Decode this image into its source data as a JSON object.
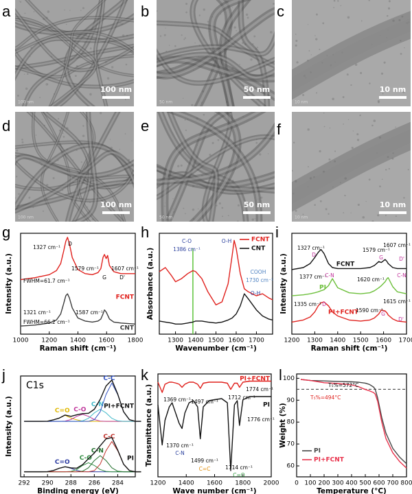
{
  "panels": [
    {
      "label": "a",
      "scale_bar": "100 nm",
      "imprint": "100 nm"
    },
    {
      "label": "b",
      "scale_bar": "50 nm",
      "imprint": "50 nm"
    },
    {
      "label": "c",
      "scale_bar": "10 nm",
      "imprint": "10 nm"
    },
    {
      "label": "d",
      "scale_bar": "100 nm",
      "imprint": "100 nm"
    },
    {
      "label": "e",
      "scale_bar": "50 nm",
      "imprint": "50 nm"
    },
    {
      "label": "f",
      "scale_bar": "10 nm",
      "imprint": "10 nm"
    }
  ],
  "chart_data": [
    {
      "type": "line",
      "letter": "g",
      "xlabel": "Raman shift (cm⁻¹)",
      "ylabel": "Intensity (a.u.)",
      "x": [
        1000,
        1100,
        1200,
        1250,
        1280,
        1300,
        1315,
        1327,
        1340,
        1360,
        1400,
        1450,
        1500,
        1540,
        1560,
        1575,
        1585,
        1597,
        1607,
        1620,
        1650,
        1700,
        1800
      ],
      "xlim": [
        1000,
        1800
      ],
      "xticks": [
        1000,
        1200,
        1400,
        1600,
        1800
      ],
      "ylim": [
        0,
        100
      ],
      "series": [
        {
          "name": "FCNT",
          "color": "#e0201c",
          "values": [
            54,
            56,
            59,
            63,
            70,
            82,
            92,
            96,
            90,
            76,
            64,
            60,
            59,
            61,
            65,
            76,
            79,
            75,
            78,
            68,
            62,
            60,
            60
          ]
        },
        {
          "name": "CNT",
          "color": "#3a3a3a",
          "values": [
            8,
            9,
            11,
            14,
            20,
            30,
            38,
            40,
            36,
            26,
            16,
            13,
            12,
            13,
            15,
            20,
            24,
            22,
            19,
            15,
            12,
            11,
            10
          ]
        }
      ],
      "annotations": [
        {
          "text": "1327 cm⁻¹",
          "color": "#000"
        },
        {
          "text": "D",
          "color": "#000"
        },
        {
          "text": "1579 cm⁻¹",
          "color": "#000"
        },
        {
          "text": "1607 cm⁻¹",
          "color": "#000"
        },
        {
          "text": "G",
          "color": "#000"
        },
        {
          "text": "D'",
          "color": "#000"
        },
        {
          "text": "FWHM=61.7 cm⁻¹",
          "color": "#000"
        },
        {
          "text": "1321 cm⁻¹",
          "color": "#000"
        },
        {
          "text": "1587 cm⁻¹",
          "color": "#000"
        },
        {
          "text": "FWHM=66.2 cm⁻¹",
          "color": "#000"
        }
      ]
    },
    {
      "type": "line",
      "letter": "h",
      "xlabel": "Wavenumber (cm⁻¹)",
      "ylabel": "Absorbance (a.u.)",
      "x": [
        1220,
        1250,
        1280,
        1300,
        1330,
        1360,
        1386,
        1400,
        1430,
        1460,
        1500,
        1530,
        1560,
        1580,
        1590,
        1600,
        1620,
        1640,
        1660,
        1700,
        1730,
        1760,
        1780
      ],
      "xlim": [
        1220,
        1780
      ],
      "xticks": [
        1300,
        1400,
        1500,
        1600,
        1700
      ],
      "ylim": [
        0,
        100
      ],
      "legend": "upper right",
      "vlines": [
        {
          "value": 1386,
          "color": "#5cc23a"
        }
      ],
      "series": [
        {
          "name": "FCNT",
          "color": "#e0201c",
          "values": [
            62,
            66,
            58,
            52,
            55,
            60,
            63,
            62,
            55,
            42,
            29,
            32,
            50,
            78,
            93,
            85,
            60,
            45,
            42,
            38,
            40,
            36,
            34
          ]
        },
        {
          "name": "CNT",
          "color": "#111111",
          "values": [
            13,
            12,
            11,
            10,
            10,
            11,
            12,
            13,
            13,
            12,
            11,
            12,
            14,
            16,
            18,
            20,
            28,
            40,
            35,
            24,
            18,
            15,
            14
          ]
        }
      ],
      "annotations": [
        {
          "text": "C-O",
          "color": "#2a3f9d"
        },
        {
          "text": "1386 cm⁻¹",
          "color": "#2a3f9d"
        },
        {
          "text": "O-H",
          "color": "#2a3f9d"
        },
        {
          "text": "O-H",
          "color": "#2a3f9d"
        },
        {
          "text": "COOH",
          "color": "#4a7fc0"
        },
        {
          "text": "1730 cm⁻¹",
          "color": "#4a7fc0"
        }
      ]
    },
    {
      "type": "line",
      "letter": "i",
      "xlabel": "Raman shift (cm⁻¹)",
      "ylabel": "Intensity (a.u.)",
      "x": [
        1200,
        1250,
        1280,
        1300,
        1315,
        1327,
        1340,
        1360,
        1377,
        1400,
        1450,
        1500,
        1540,
        1560,
        1579,
        1590,
        1607,
        1615,
        1620,
        1640,
        1660,
        1700
      ],
      "xlim": [
        1200,
        1700
      ],
      "xticks": [
        1200,
        1300,
        1400,
        1500,
        1600,
        1700
      ],
      "ylim": [
        0,
        100
      ],
      "series": [
        {
          "name": "FCNT",
          "color": "#111111",
          "values": [
            64,
            66,
            70,
            76,
            81,
            84,
            80,
            70,
            66,
            65,
            65,
            65,
            66,
            68,
            72,
            71,
            74,
            72,
            70,
            66,
            65,
            65
          ]
        },
        {
          "name": "PI",
          "color": "#6cbf3a",
          "values": [
            38,
            39,
            40,
            41,
            42,
            43,
            44,
            48,
            55,
            46,
            41,
            40,
            41,
            43,
            46,
            48,
            52,
            55,
            56,
            47,
            42,
            40
          ]
        },
        {
          "name": "PI+FCNT",
          "color": "#e0201c",
          "values": [
            12,
            14,
            17,
            22,
            28,
            31,
            32,
            28,
            22,
            18,
            14,
            13,
            14,
            16,
            20,
            24,
            23,
            21,
            19,
            15,
            13,
            12
          ]
        }
      ],
      "annotations": [
        {
          "text": "1327 cm⁻¹",
          "color": "#000"
        },
        {
          "text": "D",
          "color": "#c0309a"
        },
        {
          "text": "1579 cm⁻¹",
          "color": "#000"
        },
        {
          "text": "G",
          "color": "#c0309a"
        },
        {
          "text": "1607 cm⁻¹",
          "color": "#000"
        },
        {
          "text": "D'",
          "color": "#c0309a"
        },
        {
          "text": "1377 cm⁻¹",
          "color": "#000"
        },
        {
          "text": "C-N",
          "color": "#c0309a"
        },
        {
          "text": "1620 cm⁻¹",
          "color": "#000"
        },
        {
          "text": "C-N",
          "color": "#c0309a"
        },
        {
          "text": "1335 cm⁻¹",
          "color": "#000"
        },
        {
          "text": "D",
          "color": "#c0309a"
        },
        {
          "text": "1590 cm⁻¹",
          "color": "#000"
        },
        {
          "text": "G",
          "color": "#c0309a"
        },
        {
          "text": "1615 cm⁻¹",
          "color": "#000"
        },
        {
          "text": "D'",
          "color": "#c0309a"
        }
      ]
    },
    {
      "type": "line",
      "letter": "j",
      "title": "C1s",
      "xlabel": "Binding energy (eV)",
      "ylabel": "Intensity (a.u.)",
      "x": [
        292,
        291.5,
        291,
        290.5,
        290,
        289.5,
        289,
        288.5,
        288,
        287.5,
        287,
        286.5,
        286,
        285.5,
        285,
        284.5,
        284,
        283.5,
        283,
        282.5,
        282
      ],
      "xlim": [
        292.3,
        282.5
      ],
      "xticks": [
        292,
        290,
        288,
        286,
        284
      ],
      "ylim": [
        0,
        100
      ],
      "components": [
        {
          "name": "C=O",
          "color": "#e0b800",
          "values": [
            55,
            55,
            55,
            55,
            55.2,
            56.5,
            58.2,
            61,
            58.2,
            56.5,
            55.2,
            55,
            55,
            55,
            55,
            55,
            55,
            55,
            55,
            55,
            55
          ]
        },
        {
          "name": "C-O",
          "color": "#c0389c",
          "values": [
            55,
            55,
            55,
            55,
            55,
            55,
            55,
            55.3,
            56.8,
            60,
            62,
            60,
            56.8,
            55.3,
            55,
            55,
            55,
            55,
            55,
            55,
            55
          ]
        },
        {
          "name": "C-N",
          "color": "#3fb9c9",
          "values": [
            55,
            55,
            55,
            55,
            55,
            55,
            55,
            55,
            55,
            55,
            55.5,
            58,
            63.5,
            67,
            63.5,
            58,
            55.5,
            55,
            55,
            55,
            55
          ]
        },
        {
          "name": "C-C",
          "color": "#3050c0",
          "values": [
            55,
            55,
            55,
            55,
            55,
            55,
            55,
            55,
            55,
            55,
            55,
            55,
            56.7,
            64.5,
            81.6,
            93,
            81.6,
            64.5,
            56.7,
            55,
            55
          ]
        },
        {
          "name": "C=O",
          "color": "#2838a0",
          "values": [
            5,
            5,
            5,
            5,
            5.2,
            6.25,
            8.5,
            10,
            8.5,
            6.25,
            5.2,
            5,
            5,
            5,
            5,
            5,
            5,
            5,
            5,
            5,
            5
          ]
        },
        {
          "name": "C-O",
          "color": "#2e8b3e",
          "values": [
            5,
            5,
            5,
            5,
            5,
            5,
            5,
            5,
            5.4,
            7.3,
            11.3,
            14,
            11.3,
            7.3,
            5.4,
            5,
            5,
            5,
            5,
            5,
            5
          ]
        },
        {
          "name": "C-N",
          "color": "#1f6e2a",
          "values": [
            5,
            5,
            5,
            5,
            5,
            5,
            5,
            5,
            5,
            5,
            5.6,
            9,
            16.2,
            21,
            16.2,
            9,
            5.6,
            5,
            5,
            5,
            5
          ]
        },
        {
          "name": "C-C",
          "color": "#c0302a",
          "values": [
            5,
            5,
            5,
            5,
            5,
            5,
            5,
            5,
            5,
            5,
            5,
            5,
            6.2,
            12.5,
            26,
            35,
            26,
            12.5,
            6.2,
            5,
            5
          ]
        }
      ],
      "series": [
        {
          "name": "PI+FCNT",
          "color": "#111111",
          "values": [
            55,
            55,
            55,
            55,
            55.2,
            56.5,
            58.2,
            61.3,
            60,
            61.5,
            62.7,
            63,
            67,
            76.8,
            90.1,
            96,
            82.1,
            64.5,
            56.7,
            55,
            55
          ]
        },
        {
          "name": "PI",
          "color": "#111111",
          "values": [
            5,
            5,
            5,
            5,
            5.2,
            6.25,
            8.5,
            10,
            8.9,
            8.55,
            12.1,
            18,
            23.7,
            30.8,
            37.6,
            39,
            26.6,
            12.5,
            6.2,
            5,
            5
          ]
        }
      ],
      "annotations": []
    },
    {
      "type": "line",
      "letter": "k",
      "xlabel": "Wave number (cm⁻¹)",
      "ylabel": "Transmittance (a.u.)",
      "x": [
        1200,
        1230,
        1250,
        1280,
        1300,
        1330,
        1350,
        1370,
        1390,
        1420,
        1450,
        1480,
        1499,
        1520,
        1560,
        1600,
        1650,
        1690,
        1714,
        1740,
        1760,
        1776,
        1800,
        1850,
        1900,
        2000
      ],
      "xlim": [
        1200,
        2000
      ],
      "xticks": [
        1200,
        1400,
        1600,
        1800,
        2000
      ],
      "ylim": [
        0,
        100
      ],
      "series": [
        {
          "name": "PI+FCNT",
          "color": "#e0201c",
          "values": [
            92,
            82,
            90,
            92,
            92,
            91,
            90,
            87,
            90,
            92,
            92,
            90,
            86,
            91,
            92,
            92,
            92,
            91,
            85,
            91,
            91,
            87,
            92,
            93,
            93,
            93
          ]
        },
        {
          "name": "PI",
          "color": "#111111",
          "values": [
            70,
            31,
            55,
            68,
            72,
            60,
            52,
            47,
            62,
            72,
            74,
            68,
            37,
            68,
            74,
            75,
            76,
            72,
            6,
            70,
            74,
            50,
            75,
            78,
            78,
            78
          ]
        }
      ],
      "annotations": [
        {
          "text": "1369 cm⁻¹",
          "color": "#000"
        },
        {
          "text": "1497 cm⁻¹",
          "color": "#000"
        },
        {
          "text": "1712 cm⁻¹",
          "color": "#000"
        },
        {
          "text": "1774 cm⁻¹",
          "color": "#000"
        },
        {
          "text": "1370 cm⁻¹",
          "color": "#000"
        },
        {
          "text": "C-N",
          "color": "#2a3f9d"
        },
        {
          "text": "1499 cm⁻¹",
          "color": "#000"
        },
        {
          "text": "C=C",
          "color": "#e08a00"
        },
        {
          "text": "1714 cm⁻¹",
          "color": "#000"
        },
        {
          "text": "C=O",
          "color": "#2e9b3e"
        },
        {
          "text": "1776 cm⁻¹",
          "color": "#000"
        }
      ]
    },
    {
      "type": "line",
      "letter": "l",
      "xlabel": "Temperature (°C)",
      "ylabel": "Weight (%)",
      "x": [
        30,
        100,
        200,
        300,
        400,
        450,
        500,
        530,
        560,
        572,
        590,
        620,
        650,
        700,
        750,
        800
      ],
      "xlim": [
        0,
        800
      ],
      "xticks": [
        0,
        100,
        200,
        300,
        400,
        500,
        600,
        700,
        800
      ],
      "ylim": [
        55,
        102
      ],
      "yticks": [
        60,
        70,
        80,
        90,
        100
      ],
      "legend": "lower left",
      "hlines": [
        {
          "value": 95,
          "color": "#333333"
        }
      ],
      "series": [
        {
          "name": "PI",
          "color": "#444444",
          "values": [
            99.5,
            99,
            98.8,
            98.6,
            98.4,
            98.2,
            97.8,
            97.2,
            96,
            95,
            91,
            82,
            75,
            68,
            64,
            61
          ]
        },
        {
          "name": "PI+FCNT",
          "color": "#e8304a",
          "values": [
            99.5,
            99,
            98,
            97.6,
            97,
            96.2,
            94.9,
            94.3,
            93.5,
            92.8,
            89.5,
            80,
            72.5,
            66,
            62,
            59
          ]
        }
      ],
      "annotations": [
        {
          "text": "T₅%=572°C",
          "color": "#000"
        },
        {
          "text": "T₅%=494°C",
          "color": "#e0201c"
        }
      ]
    }
  ]
}
